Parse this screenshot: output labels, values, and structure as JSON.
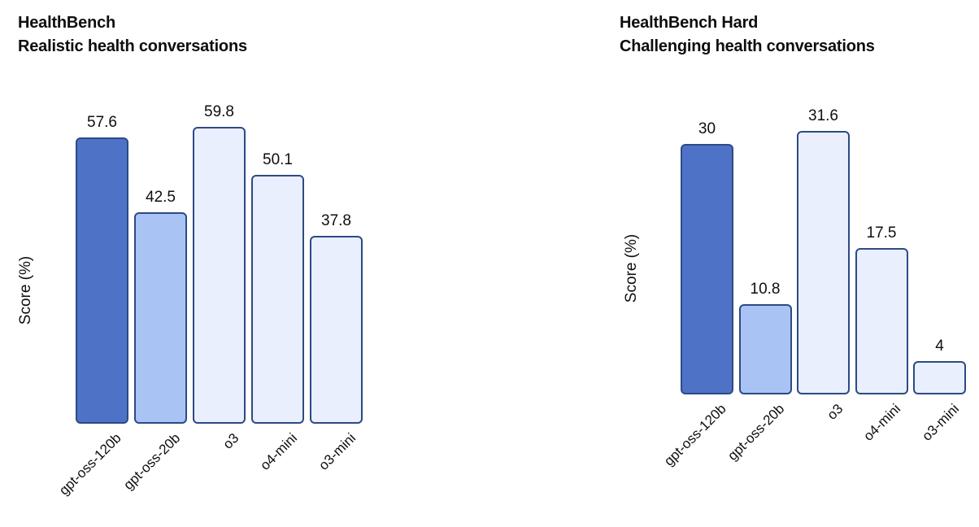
{
  "page": {
    "background": "#ffffff"
  },
  "colors": {
    "bar_primary_fill": "#4e73c6",
    "bar_secondary_fill": "#a9c3f4",
    "bar_tertiary_fill": "#e9effc",
    "bar_border": "#2d4a85",
    "text": "#0e0e0e"
  },
  "chart_data": [
    {
      "type": "bar",
      "title": "HealthBench",
      "subtitle": "Realistic health conversations",
      "ylabel": "Score (%)",
      "categories": [
        "gpt-oss-120b",
        "gpt-oss-20b",
        "o3",
        "o4-mini",
        "o3-mini"
      ],
      "values": [
        57.6,
        42.5,
        59.8,
        50.1,
        37.8
      ],
      "value_labels": [
        "57.6",
        "42.5",
        "59.8",
        "50.1",
        "37.8"
      ],
      "ylim": [
        0,
        64
      ],
      "grid": false,
      "legend": "none",
      "bar_styles": [
        "primary",
        "secondary",
        "tertiary",
        "tertiary",
        "tertiary"
      ]
    },
    {
      "type": "bar",
      "title": "HealthBench Hard",
      "subtitle": "Challenging health conversations",
      "ylabel": "Score (%)",
      "categories": [
        "gpt-oss-120b",
        "gpt-oss-20b",
        "o3",
        "o4-mini",
        "o3-mini"
      ],
      "values": [
        30,
        10.8,
        31.6,
        17.5,
        4
      ],
      "value_labels": [
        "30",
        "10.8",
        "31.6",
        "17.5",
        "4"
      ],
      "ylim": [
        0,
        33.7
      ],
      "grid": false,
      "legend": "none",
      "bar_styles": [
        "primary",
        "secondary",
        "tertiary",
        "tertiary",
        "tertiary"
      ]
    }
  ]
}
